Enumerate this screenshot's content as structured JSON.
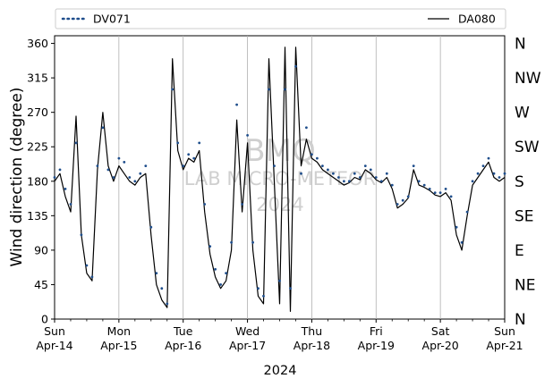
{
  "chart_data": {
    "type": "line",
    "xlabel": "2024",
    "ylabel": "Wind direction (degree)",
    "ylim": [
      0,
      370
    ],
    "yticks": [
      0,
      45,
      90,
      135,
      180,
      225,
      270,
      315,
      360
    ],
    "xlim": [
      "2024-04-14T00:00",
      "2024-04-21T00:00"
    ],
    "xtick_labels": [
      {
        "day": "Sun",
        "date": "Apr-14"
      },
      {
        "day": "Mon",
        "date": "Apr-15"
      },
      {
        "day": "Tue",
        "date": "Apr-16"
      },
      {
        "day": "Wed",
        "date": "Apr-17"
      },
      {
        "day": "Thu",
        "date": "Apr-18"
      },
      {
        "day": "Fri",
        "date": "Apr-19"
      },
      {
        "day": "Sat",
        "date": "Apr-20"
      },
      {
        "day": "Sun",
        "date": "Apr-21"
      }
    ],
    "compass_labels": [
      "N",
      "NE",
      "E",
      "SE",
      "S",
      "SW",
      "W",
      "NW",
      "N"
    ],
    "grid": "vertical at day boundaries",
    "legend_placement": "top, above plot",
    "watermark": [
      "BMQ",
      "LAB MICRO-METEOR",
      "2024"
    ],
    "series": [
      {
        "name": "DV071",
        "style": "dotted markers",
        "color": "#1f4e8c",
        "x": [
          "2024-04-14T00:00",
          "2024-04-14T02:00",
          "2024-04-14T04:00",
          "2024-04-14T06:00",
          "2024-04-14T08:00",
          "2024-04-14T10:00",
          "2024-04-14T12:00",
          "2024-04-14T14:00",
          "2024-04-14T16:00",
          "2024-04-14T18:00",
          "2024-04-14T20:00",
          "2024-04-14T22:00",
          "2024-04-15T00:00",
          "2024-04-15T02:00",
          "2024-04-15T04:00",
          "2024-04-15T06:00",
          "2024-04-15T08:00",
          "2024-04-15T10:00",
          "2024-04-15T12:00",
          "2024-04-15T14:00",
          "2024-04-15T16:00",
          "2024-04-15T18:00",
          "2024-04-15T20:00",
          "2024-04-15T22:00",
          "2024-04-16T00:00",
          "2024-04-16T02:00",
          "2024-04-16T04:00",
          "2024-04-16T06:00",
          "2024-04-16T08:00",
          "2024-04-16T10:00",
          "2024-04-16T12:00",
          "2024-04-16T14:00",
          "2024-04-16T16:00",
          "2024-04-16T18:00",
          "2024-04-16T20:00",
          "2024-04-16T22:00",
          "2024-04-17T00:00",
          "2024-04-17T02:00",
          "2024-04-17T04:00",
          "2024-04-17T06:00",
          "2024-04-17T08:00",
          "2024-04-17T10:00",
          "2024-04-17T12:00",
          "2024-04-17T14:00",
          "2024-04-17T16:00",
          "2024-04-17T18:00",
          "2024-04-17T20:00",
          "2024-04-17T22:00",
          "2024-04-18T00:00",
          "2024-04-18T02:00",
          "2024-04-18T04:00",
          "2024-04-18T06:00",
          "2024-04-18T08:00",
          "2024-04-18T10:00",
          "2024-04-18T12:00",
          "2024-04-18T14:00",
          "2024-04-18T16:00",
          "2024-04-18T18:00",
          "2024-04-18T20:00",
          "2024-04-18T22:00",
          "2024-04-19T00:00",
          "2024-04-19T02:00",
          "2024-04-19T04:00",
          "2024-04-19T06:00",
          "2024-04-19T08:00",
          "2024-04-19T10:00",
          "2024-04-19T12:00",
          "2024-04-19T14:00",
          "2024-04-19T16:00",
          "2024-04-19T18:00",
          "2024-04-19T20:00",
          "2024-04-19T22:00",
          "2024-04-20T00:00",
          "2024-04-20T02:00",
          "2024-04-20T04:00",
          "2024-04-20T06:00",
          "2024-04-20T08:00",
          "2024-04-20T10:00",
          "2024-04-20T12:00",
          "2024-04-20T14:00",
          "2024-04-20T16:00",
          "2024-04-20T18:00",
          "2024-04-20T20:00",
          "2024-04-20T22:00",
          "2024-04-21T00:00"
        ],
        "values": [
          185,
          195,
          170,
          150,
          230,
          110,
          70,
          55,
          200,
          250,
          195,
          185,
          210,
          205,
          185,
          180,
          190,
          200,
          120,
          60,
          40,
          20,
          300,
          230,
          200,
          215,
          210,
          230,
          150,
          95,
          65,
          45,
          60,
          100,
          280,
          150,
          240,
          100,
          40,
          30,
          300,
          200,
          50,
          300,
          40,
          330,
          190,
          250,
          215,
          210,
          200,
          195,
          190,
          185,
          180,
          180,
          190,
          185,
          200,
          195,
          185,
          180,
          190,
          175,
          150,
          155,
          160,
          200,
          180,
          175,
          170,
          165,
          165,
          170,
          160,
          120,
          100,
          140,
          180,
          190,
          200,
          210,
          190,
          185,
          190
        ]
      },
      {
        "name": "DA080",
        "style": "solid line",
        "color": "#000000",
        "x": [
          "2024-04-14T00:00",
          "2024-04-14T02:00",
          "2024-04-14T04:00",
          "2024-04-14T06:00",
          "2024-04-14T08:00",
          "2024-04-14T10:00",
          "2024-04-14T12:00",
          "2024-04-14T14:00",
          "2024-04-14T16:00",
          "2024-04-14T18:00",
          "2024-04-14T20:00",
          "2024-04-14T22:00",
          "2024-04-15T00:00",
          "2024-04-15T02:00",
          "2024-04-15T04:00",
          "2024-04-15T06:00",
          "2024-04-15T08:00",
          "2024-04-15T10:00",
          "2024-04-15T12:00",
          "2024-04-15T14:00",
          "2024-04-15T16:00",
          "2024-04-15T18:00",
          "2024-04-15T20:00",
          "2024-04-15T22:00",
          "2024-04-16T00:00",
          "2024-04-16T02:00",
          "2024-04-16T04:00",
          "2024-04-16T06:00",
          "2024-04-16T08:00",
          "2024-04-16T10:00",
          "2024-04-16T12:00",
          "2024-04-16T14:00",
          "2024-04-16T16:00",
          "2024-04-16T18:00",
          "2024-04-16T20:00",
          "2024-04-16T22:00",
          "2024-04-17T00:00",
          "2024-04-17T02:00",
          "2024-04-17T04:00",
          "2024-04-17T06:00",
          "2024-04-17T08:00",
          "2024-04-17T10:00",
          "2024-04-17T12:00",
          "2024-04-17T14:00",
          "2024-04-17T16:00",
          "2024-04-17T18:00",
          "2024-04-17T20:00",
          "2024-04-17T22:00",
          "2024-04-18T00:00",
          "2024-04-18T02:00",
          "2024-04-18T04:00",
          "2024-04-18T06:00",
          "2024-04-18T08:00",
          "2024-04-18T10:00",
          "2024-04-18T12:00",
          "2024-04-18T14:00",
          "2024-04-18T16:00",
          "2024-04-18T18:00",
          "2024-04-18T20:00",
          "2024-04-18T22:00",
          "2024-04-19T00:00",
          "2024-04-19T02:00",
          "2024-04-19T04:00",
          "2024-04-19T06:00",
          "2024-04-19T08:00",
          "2024-04-19T10:00",
          "2024-04-19T12:00",
          "2024-04-19T14:00",
          "2024-04-19T16:00",
          "2024-04-19T18:00",
          "2024-04-19T20:00",
          "2024-04-19T22:00",
          "2024-04-20T00:00",
          "2024-04-20T02:00",
          "2024-04-20T04:00",
          "2024-04-20T06:00",
          "2024-04-20T08:00",
          "2024-04-20T10:00",
          "2024-04-20T12:00",
          "2024-04-20T14:00",
          "2024-04-20T16:00",
          "2024-04-20T18:00",
          "2024-04-20T20:00",
          "2024-04-20T22:00",
          "2024-04-21T00:00"
        ],
        "values": [
          180,
          190,
          160,
          140,
          265,
          110,
          60,
          50,
          195,
          270,
          200,
          180,
          200,
          190,
          180,
          175,
          185,
          190,
          110,
          45,
          25,
          15,
          340,
          220,
          195,
          210,
          205,
          220,
          140,
          85,
          55,
          40,
          50,
          90,
          260,
          140,
          230,
          90,
          30,
          20,
          340,
          180,
          20,
          355,
          10,
          355,
          200,
          235,
          210,
          205,
          195,
          190,
          185,
          180,
          175,
          178,
          185,
          182,
          195,
          190,
          182,
          178,
          185,
          170,
          145,
          150,
          158,
          195,
          175,
          172,
          168,
          162,
          160,
          165,
          155,
          110,
          90,
          135,
          175,
          185,
          195,
          205,
          185,
          180,
          185
        ]
      }
    ]
  }
}
